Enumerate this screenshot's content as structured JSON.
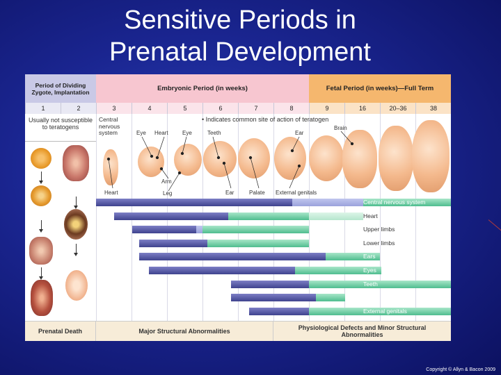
{
  "slide": {
    "title_line1": "Sensitive Periods in",
    "title_line2": "Prenatal Development",
    "copyright": "Copyright © Allyn & Bacon 2009"
  },
  "header": {
    "period_zygote": "Period of Dividing Zygote, Implantation",
    "embryonic": "Embryonic Period (in weeks)",
    "fetal": "Fetal Period (in weeks)—Full Term"
  },
  "weeks": [
    "1",
    "2",
    "3",
    "4",
    "5",
    "6",
    "7",
    "8",
    "9",
    "16",
    "20–36",
    "38"
  ],
  "labels": {
    "not_susceptible": "Usually not susceptible to teratogens",
    "cns": "Central nervous system",
    "legend": "• Indicates common site of action of teratogen",
    "eye1": "Eye",
    "heart_top": "Heart",
    "eye2": "Eye",
    "teeth": "Teeth",
    "ear_top": "Ear",
    "brain": "Brain",
    "heart_bottom": "Heart",
    "arm": "Arm",
    "leg": "Leg",
    "ear_bottom": "Ear",
    "palate": "Palate",
    "genitals": "External genitals"
  },
  "structures": [
    {
      "name": "Central nervous system"
    },
    {
      "name": "Heart"
    },
    {
      "name": "Upper limbs"
    },
    {
      "name": "Lower limbs"
    },
    {
      "name": "Ears"
    },
    {
      "name": "Eyes"
    },
    {
      "name": "Teeth"
    },
    {
      "name": "Palate"
    },
    {
      "name": "External genitals"
    }
  ],
  "footer": {
    "prenatal_death": "Prenatal Death",
    "major": "Major Structural Abnormalities",
    "physio": "Physiological Defects and Minor Structural Abnormalities"
  },
  "colors": {
    "highly_sensitive": "#4a4f9a",
    "less_sensitive": "#5cc499",
    "zygote_header": "#c9c9e6",
    "embryonic_header": "#f7c6d0",
    "fetal_header": "#f5b76e"
  }
}
